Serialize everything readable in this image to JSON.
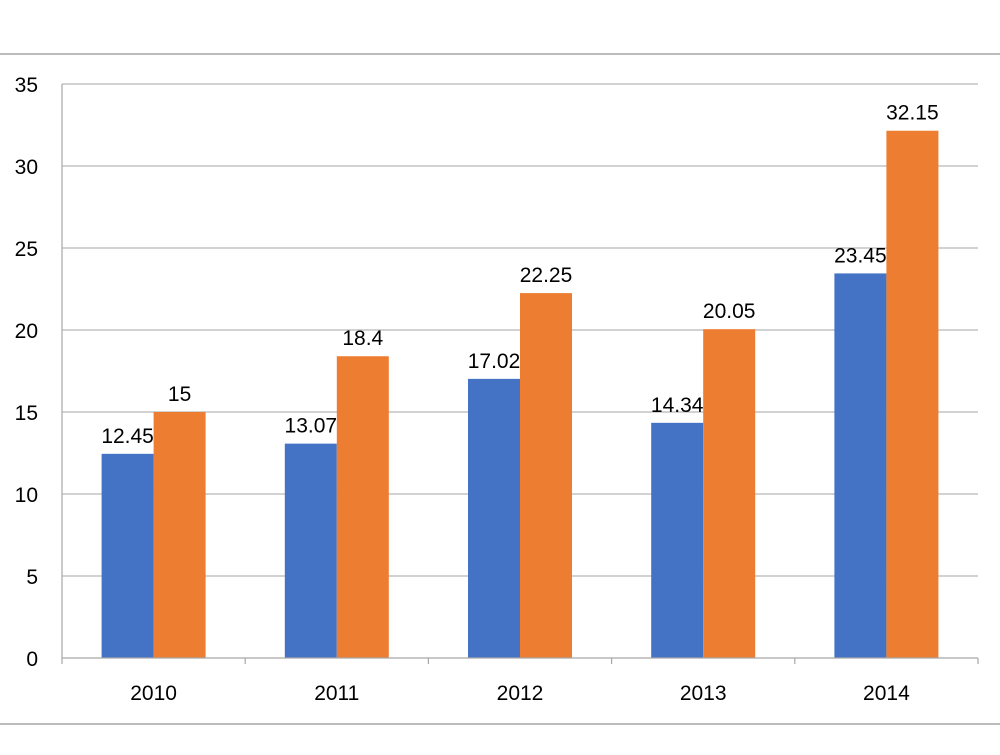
{
  "chart_data": {
    "type": "bar",
    "title": "",
    "xlabel": "",
    "ylabel": "",
    "categories": [
      "2010",
      "2011",
      "2012",
      "2013",
      "2014"
    ],
    "series": [
      {
        "values": [
          12.45,
          13.07,
          17.02,
          14.34,
          23.45
        ],
        "color": "#4472C4"
      },
      {
        "values": [
          15,
          18.4,
          22.25,
          20.05,
          32.15
        ],
        "color": "#ED7D31"
      }
    ],
    "data_labels": [
      [
        "12.45",
        "13.07",
        "17.02",
        "14.34",
        "23.45"
      ],
      [
        "15",
        "18.4",
        "22.25",
        "20.05",
        "32.15"
      ]
    ],
    "ylim": [
      0,
      35
    ],
    "yticks": [
      "0",
      "5",
      "10",
      "15",
      "20",
      "25",
      "30",
      "35"
    ],
    "grid": true,
    "legend": "none"
  }
}
